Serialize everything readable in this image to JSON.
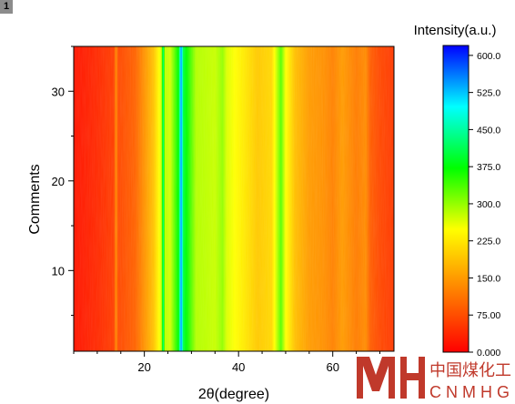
{
  "panel_badge": "1",
  "chart_data": {
    "type": "heatmap",
    "title": "",
    "xlabel": "2θ(degree)",
    "ylabel": "Comments",
    "xlim": [
      5,
      73
    ],
    "ylim": [
      1,
      35
    ],
    "x_ticks": [
      20,
      40,
      60
    ],
    "y_ticks": [
      10,
      20,
      30
    ],
    "grid": false,
    "colorbar": {
      "label": "Intensity(a.u.)",
      "min": 0,
      "max": 620,
      "ticks": [
        "0.000",
        "75.00",
        "150.0",
        "225.0",
        "300.0",
        "375.0",
        "450.0",
        "525.0",
        "600.0"
      ],
      "colors": [
        "#ff0000",
        "#ff8000",
        "#ffff00",
        "#00ff00",
        "#00ffff",
        "#0000ff"
      ]
    },
    "intensity_profile": {
      "x": [
        5,
        10,
        13.5,
        14,
        14.5,
        18,
        22,
        23.6,
        24,
        24.4,
        25.5,
        27.3,
        27.8,
        28.3,
        31,
        35,
        36.6,
        37.5,
        40,
        44,
        47,
        49,
        50,
        52,
        55,
        58,
        60,
        62,
        65,
        67,
        68,
        70,
        73
      ],
      "values": [
        20,
        40,
        60,
        130,
        70,
        95,
        190,
        270,
        430,
        280,
        270,
        380,
        560,
        400,
        285,
        275,
        300,
        265,
        240,
        195,
        210,
        330,
        250,
        185,
        150,
        140,
        125,
        150,
        120,
        135,
        90,
        70,
        55
      ]
    }
  },
  "watermark": {
    "logo_text": "MH",
    "cn_text": "中国煤化工",
    "en_text": "CNMHG",
    "color": "#c0392b"
  }
}
